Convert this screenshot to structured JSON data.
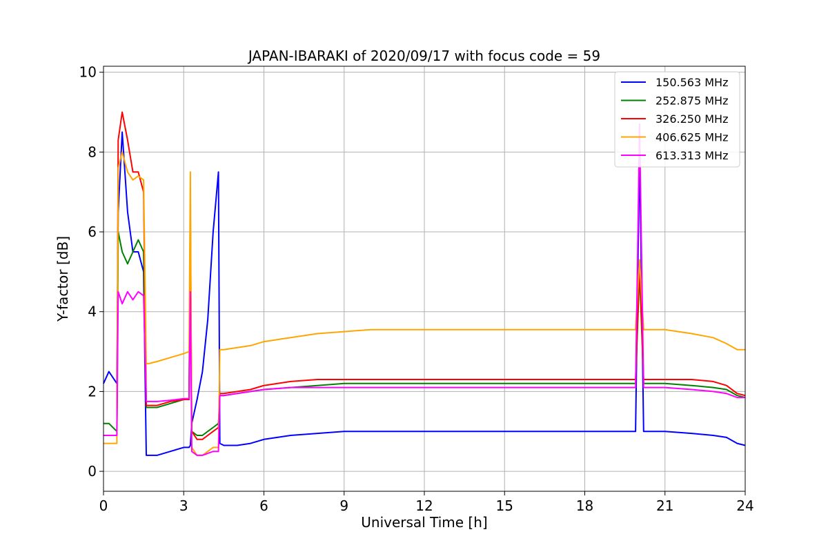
{
  "chart_data": {
    "type": "line",
    "title": "JAPAN-IBARAKI of 2020/09/17 with focus code = 59",
    "xlabel": "Universal Time [h]",
    "ylabel": "Y-factor [dB]",
    "xlim": [
      0,
      24
    ],
    "ylim": [
      -0.5,
      10.15
    ],
    "xticks": [
      0,
      3,
      6,
      9,
      12,
      15,
      18,
      21,
      24
    ],
    "yticks": [
      0,
      2,
      4,
      6,
      8,
      10
    ],
    "grid": true,
    "legend_position": "top-right",
    "x": [
      0,
      0.2,
      0.5,
      0.55,
      0.7,
      0.9,
      1.1,
      1.3,
      1.5,
      1.6,
      1.7,
      2,
      2.5,
      3,
      3.2,
      3.25,
      3.3,
      3.5,
      3.7,
      3.9,
      4.1,
      4.3,
      4.35,
      4.5,
      5,
      5.5,
      6,
      7,
      8,
      9,
      10,
      11,
      12,
      13,
      14,
      15,
      16,
      17,
      18,
      19,
      19.9,
      20.05,
      20.2,
      21,
      22,
      22.8,
      23.3,
      23.7,
      24
    ],
    "series": [
      {
        "name": "150.563 MHz",
        "color": "#0000ff",
        "values": [
          2.2,
          2.5,
          2.2,
          6.5,
          8.5,
          6.5,
          5.5,
          5.5,
          5,
          0.4,
          0.4,
          0.4,
          0.5,
          0.6,
          0.6,
          0.65,
          1.2,
          1.8,
          2.5,
          3.8,
          6.0,
          7.5,
          0.7,
          0.65,
          0.65,
          0.7,
          0.8,
          0.9,
          0.95,
          1.0,
          1.0,
          1.0,
          1.0,
          1.0,
          1.0,
          1.0,
          1.0,
          1.0,
          1.0,
          1.0,
          1.0,
          8.0,
          1.0,
          1.0,
          0.95,
          0.9,
          0.85,
          0.7,
          0.65
        ]
      },
      {
        "name": "252.875 MHz",
        "color": "#008000",
        "values": [
          1.2,
          1.2,
          1.0,
          6.0,
          5.5,
          5.2,
          5.5,
          5.8,
          5.5,
          1.6,
          1.6,
          1.6,
          1.7,
          1.8,
          1.8,
          6.0,
          1.0,
          0.9,
          0.9,
          1.0,
          1.1,
          1.2,
          1.9,
          1.9,
          1.95,
          2.0,
          2.05,
          2.1,
          2.15,
          2.2,
          2.2,
          2.2,
          2.2,
          2.2,
          2.2,
          2.2,
          2.2,
          2.2,
          2.2,
          2.2,
          2.2,
          5.0,
          2.2,
          2.2,
          2.15,
          2.1,
          2.05,
          1.9,
          1.85
        ]
      },
      {
        "name": "326.250 MHz",
        "color": "#ff0000",
        "values": [
          0.9,
          0.9,
          0.9,
          8.3,
          9.0,
          8.3,
          7.5,
          7.5,
          7.0,
          1.65,
          1.65,
          1.65,
          1.75,
          1.8,
          1.8,
          6.5,
          1.0,
          0.8,
          0.8,
          0.9,
          1.0,
          1.1,
          1.95,
          1.95,
          2.0,
          2.05,
          2.15,
          2.25,
          2.3,
          2.3,
          2.3,
          2.3,
          2.3,
          2.3,
          2.3,
          2.3,
          2.3,
          2.3,
          2.3,
          2.3,
          2.3,
          5.2,
          2.3,
          2.3,
          2.3,
          2.25,
          2.15,
          1.95,
          1.9
        ]
      },
      {
        "name": "406.625 MHz",
        "color": "#ffa500",
        "values": [
          0.7,
          0.7,
          0.7,
          7.6,
          8.0,
          7.5,
          7.3,
          7.4,
          7.3,
          2.7,
          2.7,
          2.75,
          2.85,
          2.95,
          3.0,
          7.5,
          0.6,
          0.4,
          0.4,
          0.5,
          0.6,
          0.6,
          3.05,
          3.05,
          3.1,
          3.15,
          3.25,
          3.35,
          3.45,
          3.5,
          3.55,
          3.55,
          3.55,
          3.55,
          3.55,
          3.55,
          3.55,
          3.55,
          3.55,
          3.55,
          3.55,
          5.3,
          3.55,
          3.55,
          3.45,
          3.35,
          3.2,
          3.05,
          3.05
        ]
      },
      {
        "name": "613.313 MHz",
        "color": "#ff00ff",
        "values": [
          0.9,
          0.9,
          0.9,
          4.5,
          4.2,
          4.5,
          4.3,
          4.5,
          4.4,
          1.75,
          1.75,
          1.75,
          1.78,
          1.82,
          1.82,
          4.5,
          0.5,
          0.4,
          0.4,
          0.45,
          0.5,
          0.5,
          1.9,
          1.9,
          1.95,
          2.0,
          2.05,
          2.1,
          2.1,
          2.1,
          2.1,
          2.1,
          2.1,
          2.1,
          2.1,
          2.1,
          2.1,
          2.1,
          2.1,
          2.1,
          2.1,
          8.7,
          2.1,
          2.1,
          2.05,
          2.0,
          1.95,
          1.85,
          1.85
        ]
      }
    ]
  }
}
